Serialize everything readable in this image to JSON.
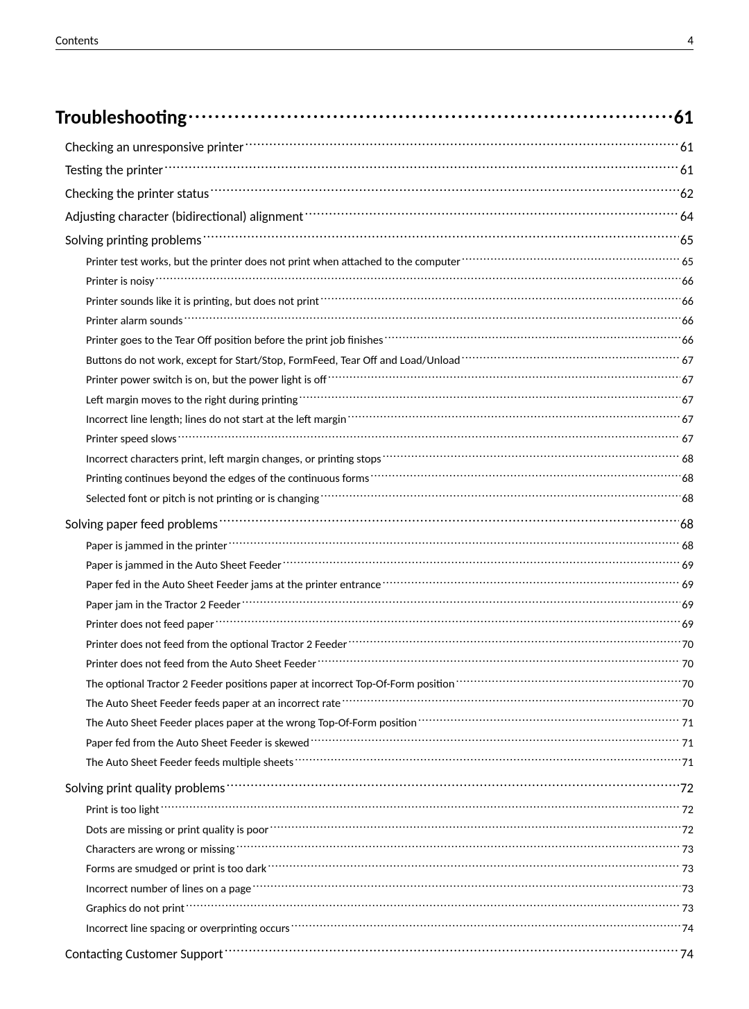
{
  "header": {
    "label": "Contents",
    "page_number": "4"
  },
  "section": {
    "title": "Troubleshooting",
    "page": "61"
  },
  "toc": [
    {
      "level": 1,
      "title": "Checking an unresponsive printer",
      "page": "61"
    },
    {
      "level": 1,
      "title": "Testing the printer",
      "page": "61"
    },
    {
      "level": 1,
      "title": "Checking the printer status",
      "page": "62"
    },
    {
      "level": 1,
      "title": "Adjusting character (bidirectional) alignment",
      "page": "64"
    },
    {
      "level": 1,
      "title": "Solving printing problems",
      "page": "65",
      "group_start": true
    },
    {
      "level": 2,
      "title": "Printer test works, but the printer does not print when attached to the computer",
      "page": "65"
    },
    {
      "level": 2,
      "title": "Printer is noisy",
      "page": "66"
    },
    {
      "level": 2,
      "title": "Printer sounds like it is printing, but does not print",
      "page": "66"
    },
    {
      "level": 2,
      "title": "Printer alarm sounds",
      "page": "66"
    },
    {
      "level": 2,
      "title": "Printer goes to the Tear Off position before the print job finishes",
      "page": "66"
    },
    {
      "level": 2,
      "title": "Buttons do not work, except for Start/Stop, FormFeed, Tear Off and Load/Unload",
      "page": "67"
    },
    {
      "level": 2,
      "title": "Printer power switch is on, but the power light is off",
      "page": "67"
    },
    {
      "level": 2,
      "title": "Left margin moves to the right during printing",
      "page": "67"
    },
    {
      "level": 2,
      "title": "Incorrect line length; lines do not start at the left margin",
      "page": "67"
    },
    {
      "level": 2,
      "title": "Printer speed slows",
      "page": "67"
    },
    {
      "level": 2,
      "title": "Incorrect characters print, left margin changes, or printing stops",
      "page": "68"
    },
    {
      "level": 2,
      "title": "Printing continues beyond the edges of the continuous forms",
      "page": "68"
    },
    {
      "level": 2,
      "title": "Selected font or pitch is not printing or is changing",
      "page": "68",
      "group_end": true
    },
    {
      "level": 1,
      "title": "Solving paper feed problems",
      "page": "68",
      "group_start": true
    },
    {
      "level": 2,
      "title": "Paper is jammed in the printer",
      "page": "68"
    },
    {
      "level": 2,
      "title": "Paper is jammed in the Auto Sheet Feeder",
      "page": "69"
    },
    {
      "level": 2,
      "title": "Paper fed in the Auto Sheet Feeder jams at the printer entrance",
      "page": "69"
    },
    {
      "level": 2,
      "title": "Paper jam in the Tractor 2 Feeder",
      "page": "69"
    },
    {
      "level": 2,
      "title": "Printer does not feed paper",
      "page": "69"
    },
    {
      "level": 2,
      "title": "Printer does not feed from the optional Tractor 2 Feeder",
      "page": "70"
    },
    {
      "level": 2,
      "title": "Printer does not feed from the Auto Sheet Feeder",
      "page": "70"
    },
    {
      "level": 2,
      "title": "The optional Tractor 2 Feeder positions paper at incorrect Top-Of-Form position",
      "page": "70"
    },
    {
      "level": 2,
      "title": "The Auto Sheet Feeder feeds paper at an incorrect rate",
      "page": "70"
    },
    {
      "level": 2,
      "title": "The Auto Sheet Feeder places paper at the wrong Top-Of-Form position",
      "page": "71"
    },
    {
      "level": 2,
      "title": "Paper fed from the Auto Sheet Feeder is skewed",
      "page": "71"
    },
    {
      "level": 2,
      "title": "The Auto Sheet Feeder feeds multiple sheets",
      "page": "71",
      "group_end": true
    },
    {
      "level": 1,
      "title": "Solving print quality problems",
      "page": "72",
      "group_start": true
    },
    {
      "level": 2,
      "title": "Print is too light",
      "page": "72"
    },
    {
      "level": 2,
      "title": "Dots are missing or print quality is poor",
      "page": "72"
    },
    {
      "level": 2,
      "title": "Characters are wrong or missing",
      "page": "73"
    },
    {
      "level": 2,
      "title": "Forms are smudged or print is too dark",
      "page": "73"
    },
    {
      "level": 2,
      "title": "Incorrect number of lines on a page",
      "page": "73"
    },
    {
      "level": 2,
      "title": "Graphics do not print",
      "page": "73"
    },
    {
      "level": 2,
      "title": "Incorrect line spacing or overprinting occurs",
      "page": "74",
      "group_end": true
    },
    {
      "level": 1,
      "title": "Contacting Customer Support",
      "page": "74"
    }
  ]
}
